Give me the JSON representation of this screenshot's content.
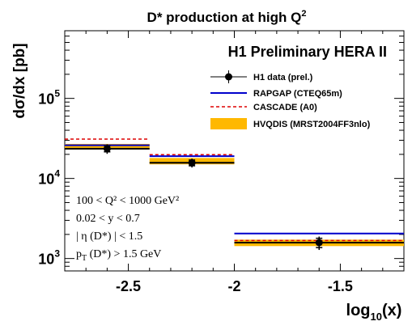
{
  "chart_data": {
    "type": "line",
    "title": {
      "main": "D* production at high Q",
      "sup": "2"
    },
    "experiment_label": "H1 Preliminary HERA II",
    "ylabel": "dσ/dx [pb]",
    "xlabel": {
      "prefix": "log",
      "sub": "10",
      "suffix": "(x)"
    },
    "x_axis": {
      "range": [
        -2.8,
        -1.2
      ],
      "ticks": [
        -2.5,
        -2.0,
        -1.5
      ],
      "tick_labels": [
        "-2.5",
        "-2",
        "-1.5"
      ]
    },
    "y_axis": {
      "scale": "log",
      "range": [
        700,
        700000
      ],
      "ticks": [
        1000,
        10000,
        100000
      ],
      "tick_labels": [
        {
          "base": "10",
          "exp": "3"
        },
        {
          "base": "10",
          "exp": "4"
        },
        {
          "base": "10",
          "exp": "5"
        }
      ]
    },
    "bins": [
      {
        "x_low": -2.8,
        "x_high": -2.4,
        "x_center": -2.6
      },
      {
        "x_low": -2.4,
        "x_high": -2.0,
        "x_center": -2.2
      },
      {
        "x_low": -2.0,
        "x_high": -1.2,
        "x_center": -1.6
      }
    ],
    "series": [
      {
        "name": "H1 data (prel.)",
        "style": "points",
        "color": "#000000",
        "values": [
          23500,
          15700,
          1580
        ],
        "err_stat": [
          2000,
          1300,
          210
        ],
        "err_tot": [
          3200,
          2000,
          300
        ]
      },
      {
        "name": "RAPGAP (CTEQ65m)",
        "style": "line",
        "color": "#0000cc",
        "values": [
          26000,
          19000,
          2050
        ]
      },
      {
        "name": "CASCADE (A0)",
        "style": "dashed",
        "color": "#dd0000",
        "values": [
          31000,
          19800,
          1680
        ]
      },
      {
        "name": "HVQDIS (MRST2004FF3nlo)",
        "style": "band",
        "color": "#ffb800",
        "values": [
          25000,
          16500,
          1580
        ],
        "band_low": [
          23000,
          15000,
          1430
        ],
        "band_high": [
          27000,
          18000,
          1720
        ]
      }
    ],
    "legend_placement": "top-right",
    "cuts": [
      "100 < Q² < 1000 GeV²",
      "0.02 < y < 0.7",
      "| η (D*) | < 1.5",
      "p_T (D*) > 1.5 GeV"
    ]
  }
}
